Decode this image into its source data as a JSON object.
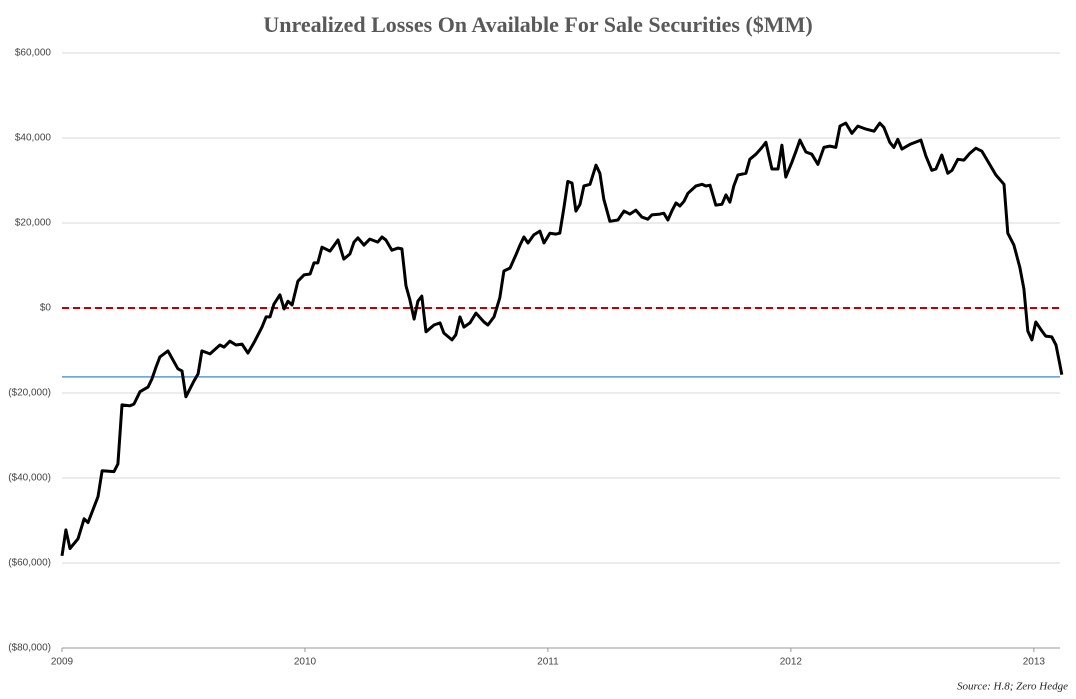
{
  "chart_data": {
    "type": "line",
    "title": "Unrealized Losses On Available For Sale Securities ($MM)",
    "source": "Source: H.8; Zero Hedge",
    "color": "#000000",
    "negative_label_color": "#c00000",
    "grid": true,
    "xlim": [
      2009,
      2013.12
    ],
    "xticks": [
      2009,
      2010,
      2011,
      2012,
      2013
    ],
    "ylim": [
      -80000,
      60000
    ],
    "yticks": [
      {
        "value": -80000,
        "label": "($80,000)"
      },
      {
        "value": -60000,
        "label": "($60,000)"
      },
      {
        "value": -40000,
        "label": "($40,000)"
      },
      {
        "value": -20000,
        "label": "($20,000)"
      },
      {
        "value": 0,
        "label": "$0"
      },
      {
        "value": 20000,
        "label": "$20,000"
      },
      {
        "value": 40000,
        "label": "$40,000"
      },
      {
        "value": 60000,
        "label": "$60,000"
      }
    ],
    "hlines": [
      {
        "value": 0,
        "color": "#c00000",
        "dashed": true
      },
      {
        "value": -16200,
        "color": "#5b9bd5",
        "dashed": false
      }
    ],
    "x": [
      2009.0,
      2009.016,
      2009.033,
      2009.066,
      2009.091,
      2009.107,
      2009.148,
      2009.165,
      2009.214,
      2009.23,
      2009.247,
      2009.28,
      2009.296,
      2009.321,
      2009.354,
      2009.37,
      2009.387,
      2009.403,
      2009.436,
      2009.477,
      2009.494,
      2009.51,
      2009.543,
      2009.56,
      2009.576,
      2009.609,
      2009.65,
      2009.667,
      2009.691,
      2009.716,
      2009.741,
      2009.765,
      2009.79,
      2009.823,
      2009.84,
      2009.856,
      2009.872,
      2009.897,
      2009.914,
      2009.93,
      2009.947,
      2009.971,
      2009.996,
      2010.021,
      2010.037,
      2010.053,
      2010.07,
      2010.103,
      2010.136,
      2010.16,
      2010.185,
      2010.202,
      2010.218,
      2010.243,
      2010.267,
      2010.3,
      2010.317,
      2010.333,
      2010.358,
      2010.383,
      2010.399,
      2010.416,
      2010.432,
      2010.449,
      2010.465,
      2010.481,
      2010.498,
      2010.531,
      2010.556,
      2010.572,
      2010.605,
      2010.621,
      2010.638,
      2010.654,
      2010.679,
      2010.704,
      2010.737,
      2010.753,
      2010.778,
      2010.802,
      2010.819,
      2010.844,
      2010.868,
      2010.885,
      2010.901,
      2010.918,
      2010.942,
      2010.967,
      2010.984,
      2011.008,
      2011.033,
      2011.049,
      2011.066,
      2011.082,
      2011.099,
      2011.115,
      2011.132,
      2011.148,
      2011.173,
      2011.198,
      2011.214,
      2011.23,
      2011.255,
      2011.288,
      2011.313,
      2011.337,
      2011.362,
      2011.387,
      2011.411,
      2011.428,
      2011.461,
      2011.477,
      2011.494,
      2011.51,
      2011.527,
      2011.543,
      2011.56,
      2011.576,
      2011.609,
      2011.634,
      2011.65,
      2011.667,
      2011.691,
      2011.716,
      2011.733,
      2011.749,
      2011.765,
      2011.782,
      2011.815,
      2011.831,
      2011.856,
      2011.881,
      2011.897,
      2011.922,
      2011.947,
      2011.963,
      2011.979,
      2012.004,
      2012.021,
      2012.037,
      2012.062,
      2012.086,
      2012.111,
      2012.136,
      2012.16,
      2012.185,
      2012.202,
      2012.226,
      2012.251,
      2012.276,
      2012.309,
      2012.342,
      2012.366,
      2012.383,
      2012.407,
      2012.424,
      2012.44,
      2012.457,
      2012.49,
      2012.535,
      2012.556,
      2012.58,
      2012.597,
      2012.621,
      2012.646,
      2012.663,
      2012.687,
      2012.712,
      2012.737,
      2012.761,
      2012.786,
      2012.811,
      2012.844,
      2012.877,
      2012.893,
      2012.918,
      2012.942,
      2012.959,
      2012.975,
      2012.992,
      2013.008,
      2013.033,
      2013.049,
      2013.074,
      2013.091,
      2013.107,
      2013.115
    ],
    "values": [
      -58300,
      -52200,
      -56600,
      -54300,
      -49600,
      -50500,
      -44400,
      -38300,
      -38500,
      -36700,
      -22800,
      -23000,
      -22600,
      -19700,
      -18600,
      -16700,
      -13900,
      -11500,
      -10100,
      -14300,
      -14800,
      -20900,
      -17200,
      -15500,
      -10100,
      -10800,
      -8700,
      -9200,
      -7800,
      -8700,
      -8500,
      -10600,
      -8200,
      -4500,
      -2100,
      -2100,
      900,
      3100,
      -200,
      1600,
      700,
      6300,
      7800,
      8000,
      10600,
      10600,
      14300,
      13400,
      16000,
      11500,
      12700,
      15500,
      16500,
      14800,
      16200,
      15500,
      16700,
      16000,
      13600,
      14100,
      13900,
      5200,
      1900,
      -2600,
      1600,
      2800,
      -5600,
      -4000,
      -3500,
      -5900,
      -7500,
      -6300,
      -2100,
      -4500,
      -3500,
      -1200,
      -3300,
      -4000,
      -2100,
      2400,
      8700,
      9400,
      12500,
      14800,
      16700,
      15300,
      17200,
      18100,
      15300,
      17600,
      17400,
      17600,
      23700,
      29800,
      29400,
      22800,
      24400,
      28700,
      29100,
      33600,
      31700,
      25600,
      20400,
      20700,
      22800,
      22100,
      23000,
      21400,
      20900,
      21900,
      22100,
      22300,
      20700,
      22800,
      24700,
      24000,
      25100,
      27000,
      28700,
      29100,
      28700,
      28900,
      24200,
      24400,
      26600,
      24900,
      28700,
      31300,
      31700,
      35000,
      36200,
      37800,
      39000,
      32700,
      32700,
      38300,
      30800,
      34300,
      36900,
      39500,
      36700,
      36200,
      33800,
      37800,
      38100,
      37800,
      42800,
      43500,
      41100,
      42800,
      42100,
      41600,
      43500,
      42500,
      39000,
      37800,
      39700,
      37400,
      38500,
      39500,
      35700,
      32400,
      32700,
      36000,
      31700,
      32400,
      35000,
      34800,
      36400,
      37600,
      36900,
      34500,
      31300,
      29100,
      17600,
      14800,
      9600,
      4500,
      -5400,
      -7500,
      -3300,
      -5400,
      -6600,
      -6800,
      -8700,
      -13200,
      -15700
    ]
  }
}
